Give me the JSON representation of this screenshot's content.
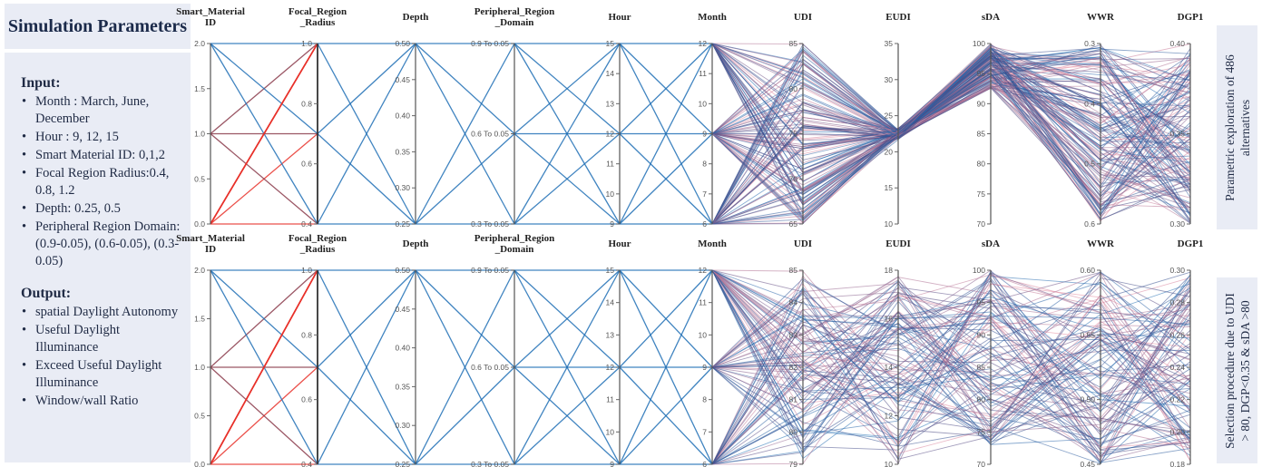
{
  "panel": {
    "title": "Simulation Parameters",
    "input_heading": "Input:",
    "inputs": [
      "Month : March, June, December",
      "Hour : 9, 12, 15",
      "Smart Material ID: 0,1,2",
      "Focal Region Radius:0.4, 0.8, 1.2",
      "Depth: 0.25, 0.5",
      "Peripheral Region Domain: (0.9-0.05), (0.6-0.05), (0.3-0.05)"
    ],
    "output_heading": "Output:",
    "outputs": [
      "spatial Daylight Autonomy",
      "Useful Daylight Illuminance",
      "Exceed Useful Daylight Illuminance",
      "Window/wall Ratio"
    ]
  },
  "side_labels": {
    "top": "Parametric exploration of 486 alternatives",
    "top_line1": "Parametric exploration of 486",
    "top_line2": "alternatives",
    "bottom_line1": "Selection procedure due to UDI",
    "bottom_line2": "> 80, DGP<0.35 & sDA >80"
  },
  "colors": {
    "blue": "#1f6fb5",
    "red": "#e8312a",
    "navy": "#3a4a8a",
    "panel_bg": "#e9ecf5"
  },
  "chart_data": [
    {
      "type": "parallel_coordinates",
      "axes": [
        {
          "name": "Smart_Material\nID",
          "ticks": [
            "0.0",
            "0.5",
            "1.0",
            "1.5",
            "2.0"
          ],
          "range": [
            0,
            2
          ]
        },
        {
          "name": "Focal_Region\n_Radius",
          "ticks": [
            "0.4",
            "0.6",
            "0.8",
            "1.0"
          ],
          "range": [
            0.4,
            1.2
          ]
        },
        {
          "name": "Depth",
          "ticks": [
            "0.25",
            "0.30",
            "0.35",
            "0.40",
            "0.45",
            "0.50"
          ],
          "range": [
            0.25,
            0.5
          ]
        },
        {
          "name": "Peripheral_Region\n_Domain",
          "ticks": [
            "0.3 To 0.05",
            "0.6 To 0.05",
            "0.9 To 0.05"
          ],
          "range": [
            0,
            2
          ]
        },
        {
          "name": "Hour",
          "ticks": [
            "9",
            "10",
            "11",
            "12",
            "13",
            "14",
            "15"
          ],
          "range": [
            9,
            15
          ]
        },
        {
          "name": "Month",
          "ticks": [
            "6",
            "7",
            "8",
            "9",
            "10",
            "11",
            "12"
          ],
          "range": [
            6,
            12
          ]
        },
        {
          "name": "UDI",
          "ticks": [
            "65",
            "70",
            "75",
            "80",
            "85"
          ],
          "range": [
            62,
            85
          ]
        },
        {
          "name": "EUDI",
          "ticks": [
            "10",
            "15",
            "20",
            "25",
            "30",
            "35"
          ],
          "range": [
            10,
            36
          ]
        },
        {
          "name": "sDA",
          "ticks": [
            "70",
            "75",
            "80",
            "85",
            "90",
            "95",
            "100"
          ],
          "range": [
            67,
            100
          ]
        },
        {
          "name": "WWR",
          "ticks": [
            "0.6",
            "0.5",
            "0.4",
            "0.3"
          ],
          "range": [
            0.25,
            0.62
          ]
        },
        {
          "name": "DGP1",
          "ticks": [
            "0.30",
            "0.35",
            "0.40"
          ],
          "range": [
            0.28,
            0.41
          ]
        }
      ]
    },
    {
      "type": "parallel_coordinates",
      "axes": [
        {
          "name": "Smart_Material\nID",
          "ticks": [
            "0.0",
            "0.5",
            "1.0",
            "1.5",
            "2.0"
          ],
          "range": [
            0,
            2
          ]
        },
        {
          "name": "Focal_Region\n_Radius",
          "ticks": [
            "0.4",
            "0.6",
            "0.8",
            "1.0"
          ],
          "range": [
            0.4,
            1.2
          ]
        },
        {
          "name": "Depth",
          "ticks": [
            "0.25",
            "0.30",
            "0.35",
            "0.40",
            "0.45",
            "0.50"
          ],
          "range": [
            0.25,
            0.5
          ]
        },
        {
          "name": "Peripheral_Region\n_Domain",
          "ticks": [
            "0.3 To 0.05",
            "0.6 To 0.05",
            "0.9 To 0.05"
          ],
          "range": [
            0,
            2
          ]
        },
        {
          "name": "Hour",
          "ticks": [
            "9",
            "10",
            "11",
            "12",
            "13",
            "14",
            "15"
          ],
          "range": [
            9,
            15
          ]
        },
        {
          "name": "Month",
          "ticks": [
            "6",
            "7",
            "8",
            "9",
            "10",
            "11",
            "12"
          ],
          "range": [
            6,
            12
          ]
        },
        {
          "name": "UDI",
          "ticks": [
            "79",
            "80",
            "81",
            "82",
            "83",
            "84",
            "85"
          ],
          "range": [
            78.8,
            85.2
          ]
        },
        {
          "name": "EUDI",
          "ticks": [
            "10",
            "12",
            "14",
            "16",
            "18"
          ],
          "range": [
            9.8,
            18.3
          ]
        },
        {
          "name": "sDA",
          "ticks": [
            "70",
            "75",
            "80",
            "85",
            "90",
            "95",
            "100"
          ],
          "range": [
            67,
            100
          ]
        },
        {
          "name": "WWR",
          "ticks": [
            "0.45",
            "0.50",
            "0.55",
            "0.60"
          ],
          "range": [
            0.43,
            0.61
          ]
        },
        {
          "name": "DGP1",
          "ticks": [
            "0.18",
            "0.20",
            "0.22",
            "0.24",
            "0.26",
            "0.28",
            "0.30"
          ],
          "range": [
            0.175,
            0.32
          ]
        }
      ]
    }
  ]
}
